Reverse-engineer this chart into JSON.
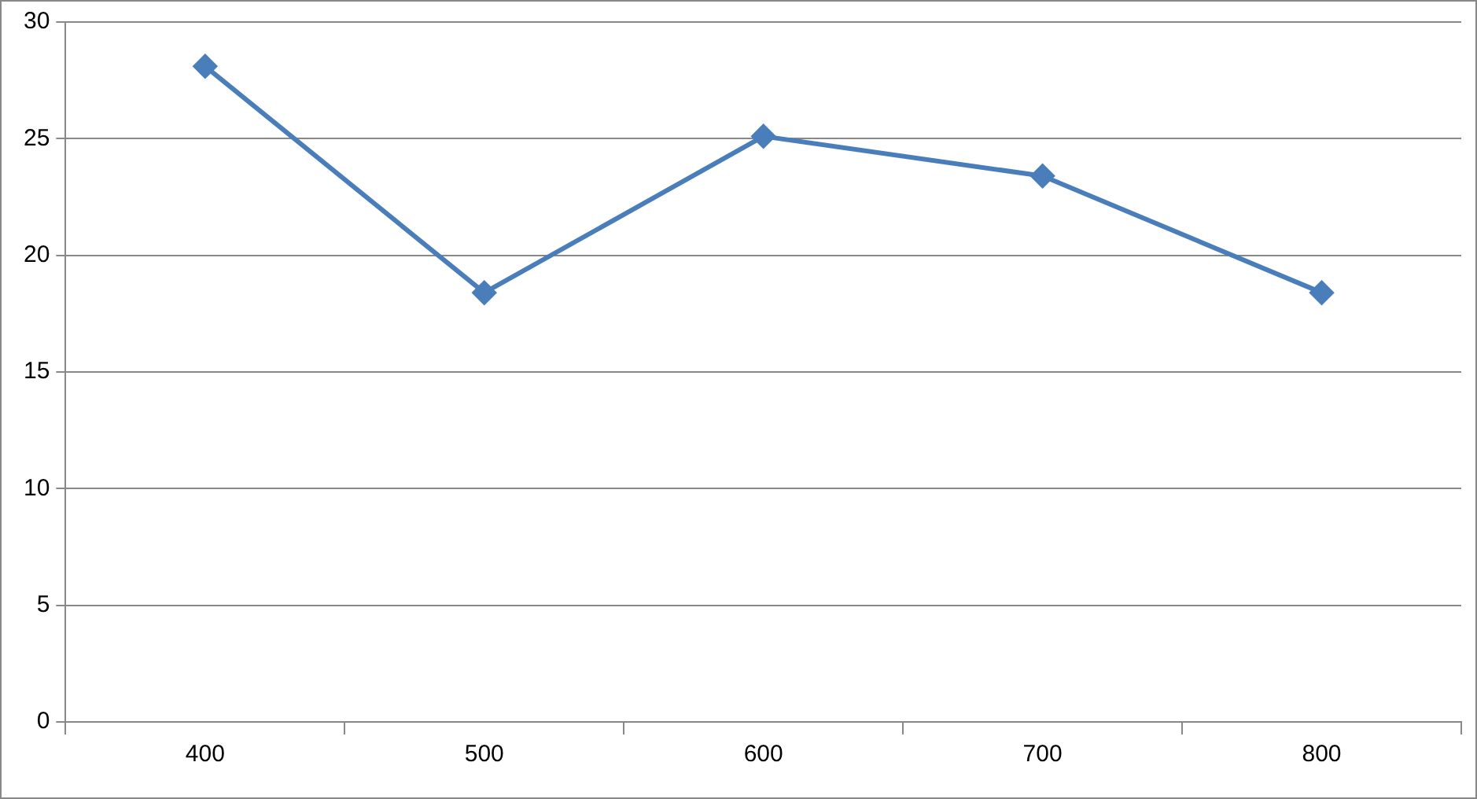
{
  "chart_data": {
    "type": "line",
    "categories": [
      "400",
      "500",
      "600",
      "700",
      "800"
    ],
    "series": [
      {
        "color": "#4a7ebb",
        "values": [
          28.1,
          18.4,
          25.1,
          23.4,
          18.4
        ]
      }
    ],
    "ylim": [
      0,
      30
    ],
    "yticks": [
      0,
      5,
      10,
      15,
      20,
      25,
      30
    ],
    "grid": "y",
    "legend": false,
    "marker": "diamond",
    "line_style": "solid"
  }
}
